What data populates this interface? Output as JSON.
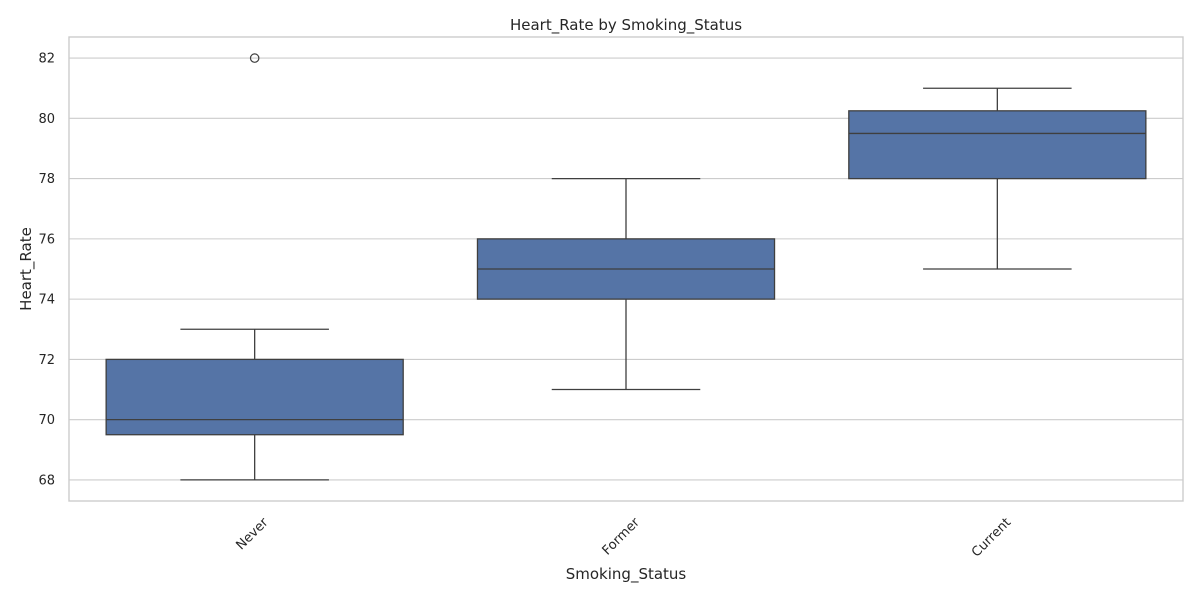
{
  "chart_data": {
    "type": "box",
    "title": "Heart_Rate by Smoking_Status",
    "xlabel": "Smoking_Status",
    "ylabel": "Heart_Rate",
    "ylim": [
      67.3,
      82.7
    ],
    "yticks": [
      68,
      70,
      72,
      74,
      76,
      78,
      80,
      82
    ],
    "grid": true,
    "box_color": "#5574a6",
    "line_color": "#3f3f3f",
    "categories": [
      "Never",
      "Former",
      "Current"
    ],
    "boxes": [
      {
        "category": "Never",
        "whisker_low": 68,
        "q1": 69.5,
        "median": 70,
        "q3": 72,
        "whisker_high": 73,
        "outliers": [
          82
        ]
      },
      {
        "category": "Former",
        "whisker_low": 71,
        "q1": 74,
        "median": 75,
        "q3": 76,
        "whisker_high": 78,
        "outliers": []
      },
      {
        "category": "Current",
        "whisker_low": 75,
        "q1": 78,
        "median": 79.5,
        "q3": 80.25,
        "whisker_high": 81,
        "outliers": []
      }
    ]
  }
}
